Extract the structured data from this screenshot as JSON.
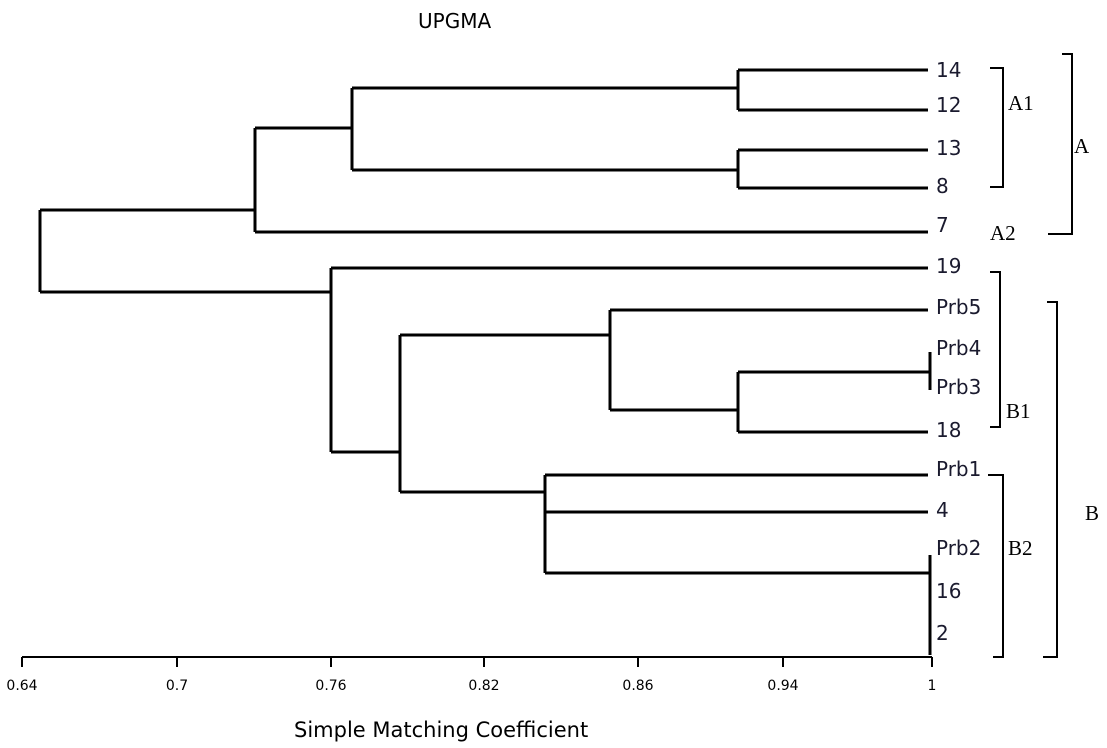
{
  "title": "UPGMA",
  "axis": {
    "label": "Simple Matching Coefficient",
    "ticks": [
      "0.64",
      "0.7",
      "0.76",
      "0.82",
      "0.86",
      "0.94",
      "1"
    ]
  },
  "leaves": [
    "14",
    "12",
    "13",
    "8",
    "7",
    "19",
    "Prb5",
    "Prb4",
    "Prb3",
    "18",
    "Prb1",
    "4",
    "Prb2",
    "16",
    "2"
  ],
  "groups": {
    "A1": "A1",
    "A2": "A2",
    "A": "A",
    "B1": "B1",
    "B2": "B2",
    "B": "B"
  },
  "colors": {
    "line": "#000000",
    "leaf_text": "#1a1a2e"
  }
}
